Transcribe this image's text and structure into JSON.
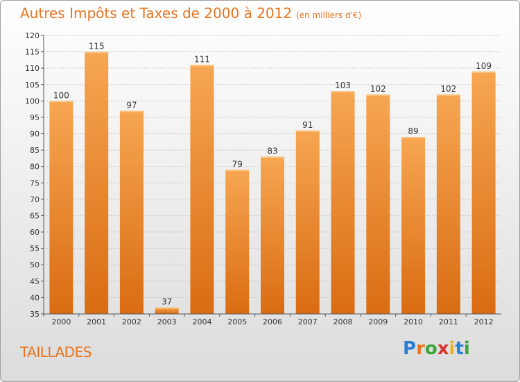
{
  "header": {
    "title": "Autres Impôts et Taxes de 2000 à 2012",
    "unit": "(en milliers d'€)"
  },
  "commune": "TAILLADES",
  "logo": {
    "text": "Proxiti",
    "letters": [
      {
        "char": "P",
        "color": "#2b7fd4"
      },
      {
        "char": "r",
        "color": "#e8731e"
      },
      {
        "char": "o",
        "color": "#3aa53a"
      },
      {
        "char": "x",
        "color": "#d6332b"
      },
      {
        "char": "i",
        "color": "#e8b21e"
      },
      {
        "char": "t",
        "color": "#2b7fd4"
      },
      {
        "char": "i",
        "color": "#3aa53a"
      }
    ]
  },
  "chart_data": {
    "type": "bar",
    "categories": [
      "2000",
      "2001",
      "2002",
      "2003",
      "2004",
      "2005",
      "2006",
      "2007",
      "2008",
      "2009",
      "2010",
      "2011",
      "2012"
    ],
    "values": [
      100,
      115,
      97,
      37,
      111,
      79,
      83,
      91,
      103,
      102,
      89,
      102,
      109
    ],
    "title": "Autres Impôts et Taxes de 2000 à 2012",
    "ylim": [
      35,
      120
    ],
    "ytick_step": 5,
    "grid": true,
    "bar_color": "#f0923a"
  }
}
